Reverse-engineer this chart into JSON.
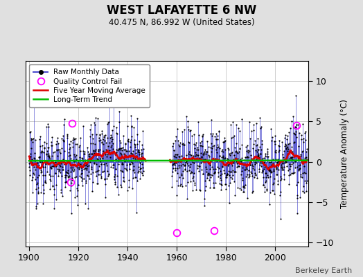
{
  "title": "WEST LAFAYETTE 6 NW",
  "subtitle": "40.475 N, 86.992 W (United States)",
  "ylabel": "Temperature Anomaly (°C)",
  "credit": "Berkeley Earth",
  "ylim": [
    -10.5,
    12.5
  ],
  "xlim": [
    1898.5,
    2013.5
  ],
  "xticks": [
    1900,
    1920,
    1940,
    1960,
    1980,
    2000
  ],
  "yticks": [
    -10,
    -5,
    0,
    5,
    10
  ],
  "start_year": 1900,
  "end_year": 2012,
  "background_color": "#e0e0e0",
  "plot_bg_color": "#ffffff",
  "raw_line_color": "#4444cc",
  "raw_dot_color": "#000000",
  "moving_avg_color": "#dd0000",
  "trend_color": "#00bb00",
  "qc_fail_color": "#ff00ff",
  "seed": 12345,
  "gap_start_year": 1946.5,
  "gap_end_year": 1958.0,
  "noise_std": 2.2,
  "autocorr": 0.25
}
